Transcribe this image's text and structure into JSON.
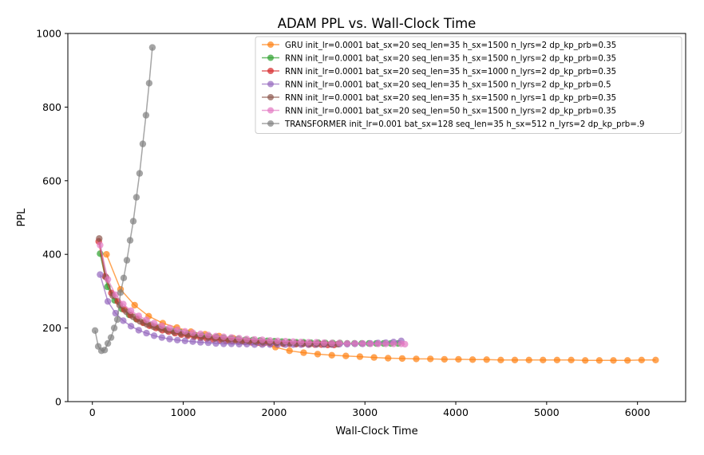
{
  "chart_data": {
    "type": "line",
    "title": "ADAM PPL vs. Wall-Clock Time",
    "xlabel": "Wall-Clock Time",
    "ylabel": "PPL",
    "xlim": [
      -270,
      6530
    ],
    "ylim": [
      0,
      1000
    ],
    "xticks": [
      0,
      1000,
      2000,
      3000,
      4000,
      5000,
      6000
    ],
    "yticks": [
      0,
      200,
      400,
      600,
      800,
      1000
    ],
    "grid": false,
    "legend_position": "top-right",
    "series": [
      {
        "name": "GRU init_lr=0.0001 bat_sx=20 seq_len=35 h_sx=1500 n_lyrs=2 dp_kp_prb=0.35",
        "color": "#ff7f0e",
        "x": [
          155,
          310,
          465,
          620,
          775,
          930,
          1085,
          1240,
          1395,
          1550,
          1705,
          1860,
          2015,
          2170,
          2325,
          2480,
          2635,
          2790,
          2945,
          3100,
          3255,
          3410,
          3565,
          3720,
          3875,
          4030,
          4185,
          4340,
          4495,
          4650,
          4805,
          4960,
          5115,
          5270,
          5425,
          5580,
          5735,
          5890,
          6045,
          6200
        ],
        "y": [
          400,
          305,
          262,
          232,
          213,
          201,
          190,
          183,
          178,
          172,
          165,
          158,
          148,
          138,
          133,
          129,
          126,
          124,
          122,
          120,
          118,
          117,
          116,
          116,
          115,
          115,
          114,
          114,
          113,
          113,
          113,
          113,
          113,
          113,
          112,
          112,
          112,
          112,
          113,
          113
        ]
      },
      {
        "name": "RNN init_lr=0.0001 bat_sx=20 seq_len=35 h_sx=1500 n_lyrs=2 dp_kp_prb=0.35",
        "color": "#2ca02c",
        "x": [
          85,
          165,
          245,
          325,
          405,
          485,
          565,
          645,
          725,
          805,
          885,
          965,
          1045,
          1125,
          1205,
          1285,
          1365,
          1445,
          1525,
          1605,
          1685,
          1765,
          1845,
          1925,
          2005,
          2085,
          2165,
          2245,
          2325,
          2405,
          2485,
          2565,
          2645,
          2725,
          2805,
          2885,
          2965,
          3045,
          3125,
          3205,
          3285,
          3365
        ],
        "y": [
          402,
          312,
          275,
          252,
          236,
          224,
          215,
          208,
          202,
          196,
          192,
          188,
          184,
          181,
          179,
          177,
          175,
          173,
          171,
          170,
          168,
          167,
          166,
          165,
          164,
          163,
          162,
          161,
          161,
          160,
          160,
          159,
          159,
          159,
          158,
          158,
          158,
          158,
          158,
          158,
          158,
          158
        ]
      },
      {
        "name": "RNN init_lr=0.0001 bat_sx=20 seq_len=35 h_sx=1000 n_lyrs=2 dp_kp_prb=0.35",
        "color": "#d62728",
        "x": [
          70,
          140,
          210,
          280,
          350,
          420,
          490,
          560,
          630,
          700,
          770,
          840,
          910,
          980,
          1050,
          1120,
          1190,
          1260,
          1330,
          1400,
          1470,
          1540,
          1610,
          1680,
          1750,
          1820,
          1890,
          1960,
          2030,
          2100,
          2170,
          2240,
          2310,
          2380,
          2450,
          2520,
          2590,
          2660
        ],
        "y": [
          435,
          340,
          295,
          272,
          250,
          235,
          224,
          214,
          206,
          200,
          194,
          190,
          186,
          182,
          179,
          176,
          173,
          171,
          169,
          167,
          165,
          164,
          163,
          162,
          161,
          160,
          159,
          158,
          158,
          157,
          157,
          156,
          156,
          155,
          155,
          155,
          154,
          154
        ]
      },
      {
        "name": "RNN init_lr=0.0001 bat_sx=20 seq_len=35 h_sx=1500 n_lyrs=2 dp_kp_prb=0.5",
        "color": "#9467bd",
        "x": [
          85,
          170,
          255,
          340,
          425,
          510,
          595,
          680,
          765,
          850,
          935,
          1020,
          1105,
          1190,
          1275,
          1360,
          1445,
          1530,
          1615,
          1700,
          1785,
          1870,
          1955,
          2040,
          2125,
          2210,
          2295,
          2380,
          2465,
          2550,
          2635,
          2720,
          2805,
          2890,
          2975,
          3060,
          3145,
          3230,
          3315,
          3400
        ],
        "y": [
          345,
          272,
          240,
          220,
          205,
          194,
          186,
          179,
          174,
          170,
          167,
          165,
          163,
          161,
          160,
          158,
          157,
          157,
          156,
          156,
          155,
          155,
          155,
          155,
          155,
          155,
          155,
          155,
          155,
          155,
          155,
          156,
          156,
          157,
          157,
          158,
          159,
          160,
          162,
          165
        ]
      },
      {
        "name": "RNN init_lr=0.0001 bat_sx=20 seq_len=35 h_sx=1500 n_lyrs=1 dp_kp_prb=0.35",
        "color": "#8c564b",
        "x": [
          75,
          150,
          225,
          300,
          375,
          450,
          525,
          600,
          675,
          750,
          825,
          900,
          975,
          1050,
          1125,
          1200,
          1275,
          1350,
          1425,
          1500,
          1575,
          1650,
          1725,
          1800,
          1875,
          1950,
          2025,
          2100,
          2175,
          2250,
          2325,
          2400,
          2475,
          2550,
          2625,
          2700
        ],
        "y": [
          443,
          338,
          288,
          262,
          244,
          230,
          218,
          210,
          203,
          198,
          193,
          189,
          185,
          182,
          179,
          176,
          174,
          172,
          170,
          168,
          167,
          165,
          164,
          163,
          162,
          161,
          160,
          159,
          159,
          158,
          158,
          157,
          157,
          157,
          156,
          156
        ]
      },
      {
        "name": "RNN init_lr=0.0001 bat_sx=20 seq_len=50 h_sx=1500 n_lyrs=2 dp_kp_prb=0.35",
        "color": "#e377c2",
        "x": [
          85,
          170,
          255,
          340,
          425,
          510,
          595,
          680,
          765,
          850,
          935,
          1020,
          1105,
          1190,
          1275,
          1360,
          1445,
          1530,
          1615,
          1700,
          1785,
          1870,
          1955,
          2040,
          2125,
          2210,
          2295,
          2380,
          2465,
          2550,
          2635,
          2720,
          2805,
          2890,
          2975,
          3060,
          3145,
          3230,
          3315,
          3400,
          3440
        ],
        "y": [
          425,
          332,
          290,
          265,
          247,
          233,
          222,
          213,
          206,
          200,
          195,
          191,
          187,
          184,
          181,
          178,
          176,
          174,
          172,
          170,
          169,
          168,
          166,
          165,
          164,
          163,
          162,
          161,
          161,
          160,
          159,
          159,
          158,
          158,
          158,
          157,
          157,
          157,
          157,
          157,
          156
        ]
      },
      {
        "name": "TRANSFORMER init_lr=0.001 bat_sx=128 seq_len=35 h_sx=512 n_lyrs=2 dp_kp_prb=.9",
        "color": "#7f7f7f",
        "x": [
          30,
          65,
          100,
          135,
          170,
          205,
          240,
          275,
          310,
          345,
          380,
          415,
          450,
          485,
          520,
          555,
          590,
          625,
          660
        ],
        "y": [
          193,
          150,
          138,
          140,
          158,
          174,
          200,
          223,
          296,
          336,
          384,
          438,
          490,
          555,
          620,
          700,
          778,
          865,
          962
        ]
      }
    ]
  }
}
